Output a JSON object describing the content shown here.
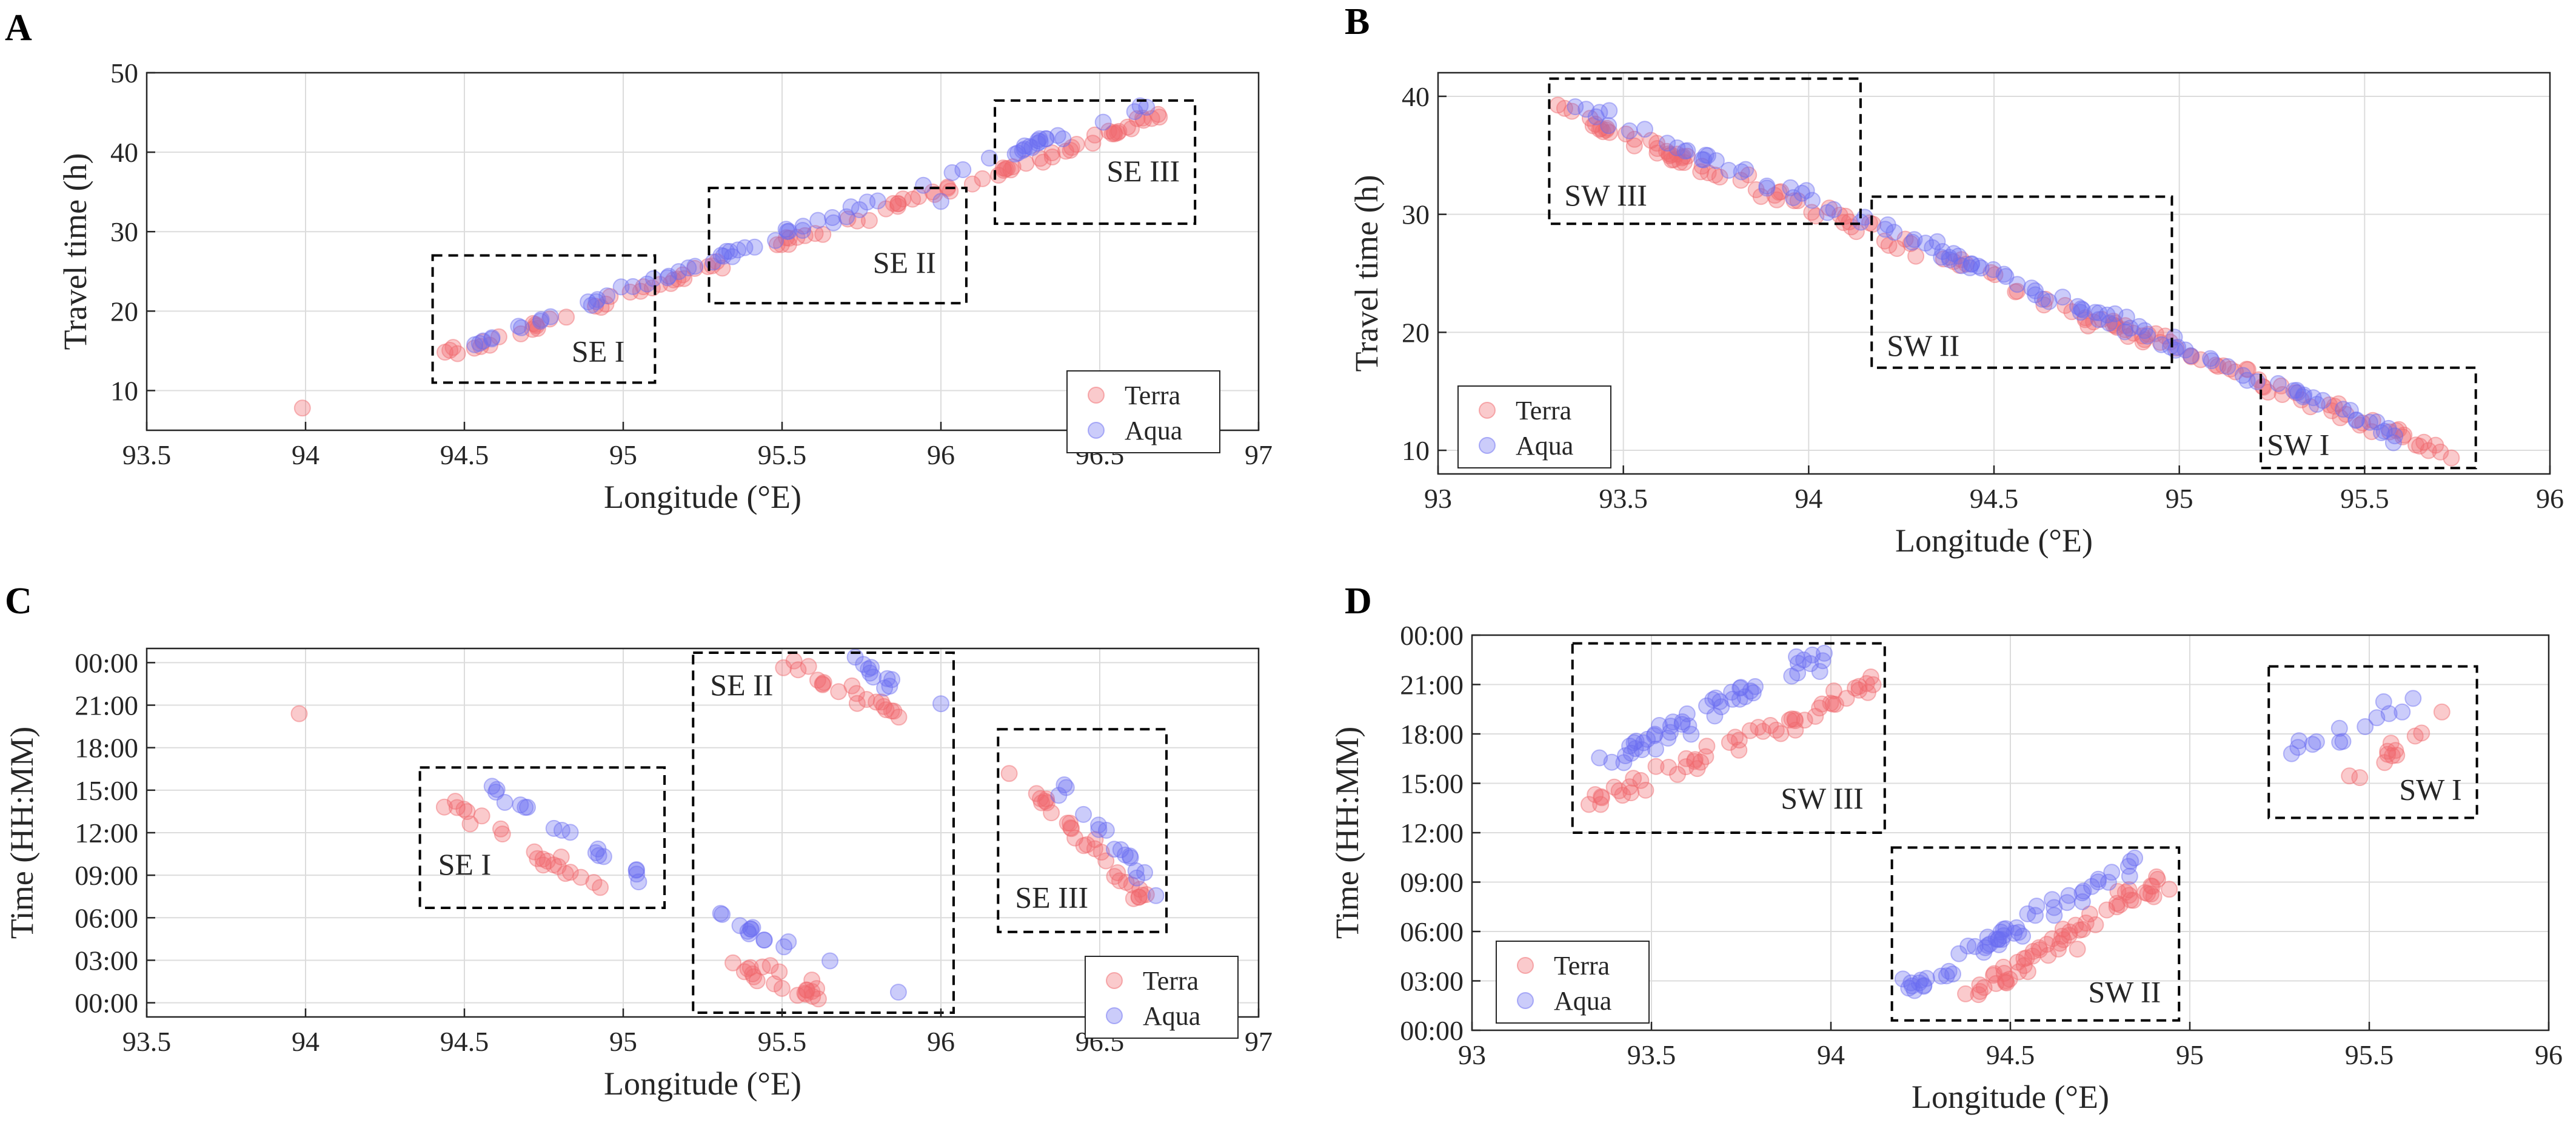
{
  "figure": {
    "colors": {
      "terra": "#f0686c",
      "aqua": "#6a6cf2",
      "grid": "#dcdcdc",
      "axis": "#262626",
      "box": "#000000"
    }
  },
  "chart_data": [
    {
      "panel": "A",
      "type": "scatter",
      "xlabel": "Longitude (°E)",
      "ylabel": "Travel time (h)",
      "xlim": [
        93.5,
        97
      ],
      "ylim": [
        5,
        50
      ],
      "xticks": [
        93.5,
        94,
        94.5,
        95,
        95.5,
        96,
        96.5,
        97
      ],
      "xtick_labels": [
        "93.5",
        "94",
        "94.5",
        "95",
        "95.5",
        "96",
        "96.5",
        "97"
      ],
      "yticks": [
        10,
        20,
        30,
        40,
        50
      ],
      "ytick_labels": [
        "10",
        "20",
        "30",
        "40",
        "50"
      ],
      "legend": {
        "position": "bottom-right",
        "entries": [
          "Terra",
          "Aqua"
        ]
      },
      "boxes": [
        {
          "label": "SE I",
          "x": [
            94.4,
            95.1
          ],
          "y": [
            11,
            27
          ]
        },
        {
          "label": "SE II",
          "x": [
            95.27,
            96.08
          ],
          "y": [
            21,
            35.5
          ]
        },
        {
          "label": "SE III",
          "x": [
            96.17,
            96.8
          ],
          "y": [
            31,
            46.5
          ]
        }
      ],
      "series": [
        {
          "name": "Terra",
          "trend": {
            "x": [
              94.45,
              96.7
            ],
            "y": [
              14.5,
              44.5
            ]
          },
          "points": 95,
          "spread": 0.6,
          "extra": [
            [
              93.99,
              7.8
            ]
          ]
        },
        {
          "name": "Aqua",
          "trend": {
            "x": [
              94.5,
              96.7
            ],
            "y": [
              15.5,
              46.5
            ]
          },
          "points": 70,
          "spread": 0.5,
          "extra": [
            [
              96.0,
              33.8
            ]
          ]
        }
      ]
    },
    {
      "panel": "B",
      "type": "scatter",
      "xlabel": "Longitude (°E)",
      "ylabel": "Travel time (h)",
      "xlim": [
        93,
        96
      ],
      "ylim": [
        8,
        42
      ],
      "xticks": [
        93,
        93.5,
        94,
        94.5,
        95,
        95.5,
        96
      ],
      "xtick_labels": [
        "93",
        "93.5",
        "94",
        "94.5",
        "95",
        "95.5",
        "96"
      ],
      "yticks": [
        10,
        20,
        30,
        40
      ],
      "ytick_labels": [
        "10",
        "20",
        "30",
        "40"
      ],
      "legend": {
        "position": "bottom-left",
        "entries": [
          "Terra",
          "Aqua"
        ]
      },
      "boxes": [
        {
          "label": "SW III",
          "x": [
            93.3,
            94.14
          ],
          "y": [
            29.2,
            41.5
          ]
        },
        {
          "label": "SW II",
          "x": [
            94.17,
            94.98
          ],
          "y": [
            17,
            31.5
          ]
        },
        {
          "label": "SW I",
          "x": [
            95.22,
            95.8
          ],
          "y": [
            8.5,
            17
          ]
        }
      ],
      "series": [
        {
          "name": "Terra",
          "trend": {
            "x": [
              93.32,
              95.75
            ],
            "y": [
              38.8,
              9.3
            ]
          },
          "points": 140,
          "spread": 0.6,
          "extra": []
        },
        {
          "name": "Aqua",
          "trend": {
            "x": [
              93.37,
              95.63
            ],
            "y": [
              39.2,
              10.8
            ]
          },
          "points": 110,
          "spread": 0.6,
          "extra": []
        }
      ]
    },
    {
      "panel": "C",
      "type": "scatter",
      "xlabel": "Longitude (°E)",
      "ylabel": "Time (HH:MM)",
      "xlim": [
        93.5,
        97
      ],
      "ylim": [
        -1,
        25
      ],
      "xticks": [
        93.5,
        94,
        94.5,
        95,
        95.5,
        96,
        96.5,
        97
      ],
      "xtick_labels": [
        "93.5",
        "94",
        "94.5",
        "95",
        "95.5",
        "96",
        "96.5",
        "97"
      ],
      "yticks": [
        0,
        3,
        6,
        9,
        12,
        15,
        18,
        21,
        24
      ],
      "ytick_labels": [
        "00:00",
        "03:00",
        "06:00",
        "09:00",
        "12:00",
        "15:00",
        "18:00",
        "21:00",
        "00:00"
      ],
      "legend": {
        "position": "bottom-right",
        "entries": [
          "Terra",
          "Aqua"
        ]
      },
      "boxes": [
        {
          "label": "SE I",
          "x": [
            94.36,
            95.13
          ],
          "y": [
            6.7,
            16.6
          ]
        },
        {
          "label": "SE II",
          "x": [
            95.22,
            96.04
          ],
          "y": [
            -0.7,
            24.7
          ]
        },
        {
          "label": "SE III",
          "x": [
            96.18,
            96.71
          ],
          "y": [
            5.0,
            19.3
          ]
        }
      ],
      "series": [
        {
          "name": "Terra",
          "clusters": [
            {
              "x": [
                94.44,
                94.93
              ],
              "y": [
                13.8,
                8.5
              ],
              "n": 22
            },
            {
              "x": [
                95.33,
                95.67
              ],
              "y": [
                2.8,
                0.2
              ],
              "n": 22
            },
            {
              "x": [
                95.5,
                95.86
              ],
              "y": [
                24,
                20.6
              ],
              "n": 20
            },
            {
              "x": [
                96.22,
                96.66
              ],
              "y": [
                16.4,
                7.0
              ],
              "n": 30
            }
          ],
          "extra": [
            [
              93.98,
              20.4
            ]
          ]
        },
        {
          "name": "Aqua",
          "clusters": [
            {
              "x": [
                94.58,
                95.08
              ],
              "y": [
                15.2,
                8.5
              ],
              "n": 18
            },
            {
              "x": [
                95.3,
                95.86
              ],
              "y": [
                6.0,
                0.6
              ],
              "n": 14
            },
            {
              "x": [
                95.72,
                95.85
              ],
              "y": [
                23.9,
                22.6
              ],
              "n": 10
            },
            {
              "x": [
                96.35,
                96.68
              ],
              "y": [
                16.0,
                8.0
              ],
              "n": 16
            }
          ],
          "extra": [
            [
              96.0,
              21.1
            ]
          ]
        }
      ]
    },
    {
      "panel": "D",
      "type": "scatter",
      "xlabel": "Longitude (°E)",
      "ylabel": "Time (HH:MM)",
      "xlim": [
        93,
        96
      ],
      "ylim": [
        0,
        24
      ],
      "xticks": [
        93,
        93.5,
        94,
        94.5,
        95,
        95.5,
        96
      ],
      "xtick_labels": [
        "93",
        "93.5",
        "94",
        "94.5",
        "95",
        "95.5",
        "96"
      ],
      "yticks": [
        0,
        3,
        6,
        9,
        12,
        15,
        18,
        21,
        24
      ],
      "ytick_labels": [
        "00:00",
        "03:00",
        "06:00",
        "09:00",
        "12:00",
        "15:00",
        "18:00",
        "21:00",
        "00:00"
      ],
      "legend": {
        "position": "bottom-left",
        "entries": [
          "Terra",
          "Aqua"
        ]
      },
      "boxes": [
        {
          "label": "SW III",
          "x": [
            93.28,
            94.15
          ],
          "y": [
            12,
            23.5
          ]
        },
        {
          "label": "SW II",
          "x": [
            94.17,
            94.97
          ],
          "y": [
            0.6,
            11.1
          ]
        },
        {
          "label": "SW I",
          "x": [
            95.22,
            95.8
          ],
          "y": [
            12.9,
            22.1
          ]
        }
      ],
      "series": [
        {
          "name": "Terra",
          "clusters": [
            {
              "x": [
                93.33,
                94.13
              ],
              "y": [
                13.7,
                21.2
              ],
              "n": 55
            },
            {
              "x": [
                94.37,
                94.93
              ],
              "y": [
                1.8,
                9.2
              ],
              "n": 60
            },
            {
              "x": [
                95.43,
                95.73
              ],
              "y": [
                15.3,
                19.1
              ],
              "n": 12
            }
          ],
          "extra": []
        },
        {
          "name": "Aqua",
          "clusters": [
            {
              "x": [
                93.36,
                94.0
              ],
              "y": [
                16.2,
                23.0
              ],
              "n": 50
            },
            {
              "x": [
                94.2,
                94.85
              ],
              "y": [
                2.4,
                10.3
              ],
              "n": 55
            },
            {
              "x": [
                95.27,
                95.63
              ],
              "y": [
                16.6,
                20.1
              ],
              "n": 14
            }
          ],
          "extra": []
        }
      ]
    }
  ]
}
